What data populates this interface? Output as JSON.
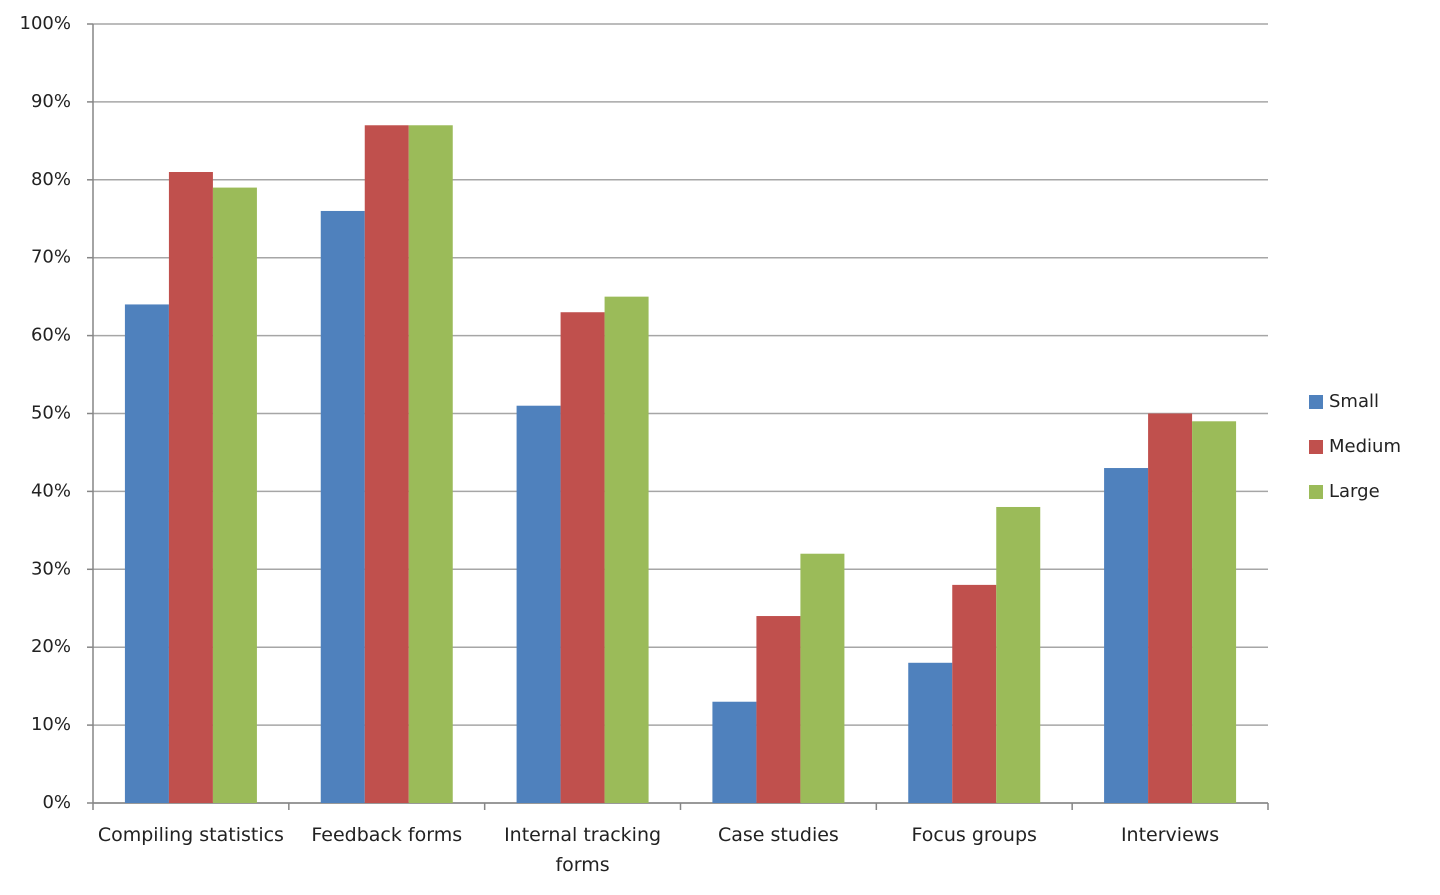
{
  "chart_data": {
    "type": "bar",
    "categories": [
      "Compiling statistics",
      "Feedback forms",
      "Internal tracking forms",
      "Case studies",
      "Focus groups",
      "Interviews"
    ],
    "series": [
      {
        "name": "Small",
        "color": "#4f81bd",
        "values": [
          64,
          76,
          51,
          13,
          18,
          43
        ]
      },
      {
        "name": "Medium",
        "color": "#c0504d",
        "values": [
          81,
          87,
          63,
          24,
          28,
          50
        ]
      },
      {
        "name": "Large",
        "color": "#9bbb59",
        "values": [
          79,
          87,
          65,
          32,
          38,
          49
        ]
      }
    ],
    "ylim": [
      0,
      100
    ],
    "yticks": [
      {
        "value": 0,
        "label": "0%"
      },
      {
        "value": 10,
        "label": "10%"
      },
      {
        "value": 20,
        "label": "20%"
      },
      {
        "value": 30,
        "label": "30%"
      },
      {
        "value": 40,
        "label": "40%"
      },
      {
        "value": 50,
        "label": "50%"
      },
      {
        "value": 60,
        "label": "60%"
      },
      {
        "value": 70,
        "label": "70%"
      },
      {
        "value": 80,
        "label": "80%"
      },
      {
        "value": 90,
        "label": "90%"
      },
      {
        "value": 100,
        "label": "100%"
      }
    ],
    "grid": true,
    "legend": "right"
  }
}
